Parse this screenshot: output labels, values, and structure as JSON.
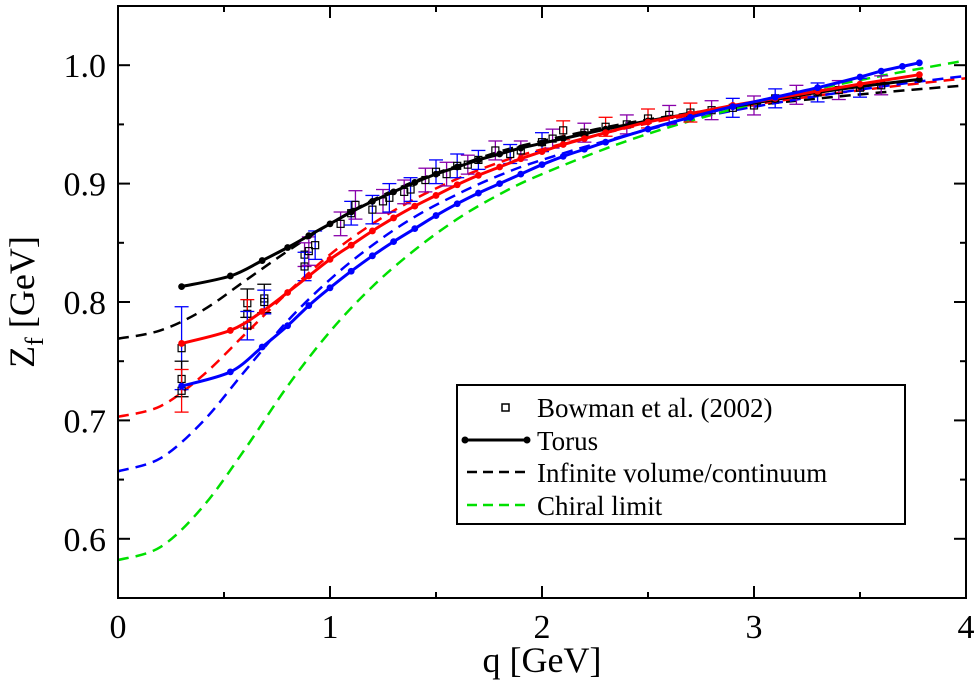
{
  "chart_data": {
    "type": "line",
    "xlabel": "q [GeV]",
    "ylabel_main": "Z",
    "ylabel_sub": "f",
    "ylabel_unit": "[GeV]",
    "xlim": [
      0,
      4
    ],
    "ylim": [
      0.55,
      1.05
    ],
    "xticks": [
      0,
      1,
      2,
      3,
      4
    ],
    "xtick_labels": [
      "0",
      "1",
      "2",
      "3",
      "4"
    ],
    "yticks": [
      0.6,
      0.7,
      0.8,
      0.9,
      1.0
    ],
    "ytick_labels": [
      "0.6",
      "0.7",
      "0.8",
      "0.9",
      "1.0"
    ],
    "grid": false,
    "legend_position": "bottom-right",
    "legend": [
      {
        "label": "Bowman et al. (2002)",
        "style": "square-marker",
        "color": "#000000"
      },
      {
        "label": "Torus",
        "style": "line-with-dots",
        "color": "#000000"
      },
      {
        "label": "Infinite volume/continuum",
        "style": "dashed",
        "color": "#000000"
      },
      {
        "label": "Chiral limit",
        "style": "dashed",
        "color": "#00e000"
      }
    ],
    "colors": {
      "black": "#000000",
      "red": "#ff0000",
      "blue": "#0000ff",
      "green": "#00e000",
      "purple": "#8800aa"
    },
    "torus_series": [
      {
        "color": "#000000",
        "x": [
          0.3,
          0.53,
          0.68,
          0.8,
          0.9,
          1.0,
          1.1,
          1.2,
          1.3,
          1.4,
          1.5,
          1.6,
          1.7,
          1.8,
          1.9,
          2.0,
          2.1,
          2.2,
          2.3,
          2.5,
          2.7,
          2.9,
          3.1,
          3.3,
          3.5,
          3.78
        ],
        "y": [
          0.813,
          0.822,
          0.835,
          0.846,
          0.856,
          0.866,
          0.876,
          0.885,
          0.893,
          0.901,
          0.908,
          0.914,
          0.92,
          0.925,
          0.93,
          0.934,
          0.938,
          0.942,
          0.946,
          0.953,
          0.959,
          0.965,
          0.971,
          0.977,
          0.982,
          0.988
        ]
      },
      {
        "color": "#ff0000",
        "x": [
          0.3,
          0.53,
          0.68,
          0.8,
          0.9,
          1.0,
          1.1,
          1.2,
          1.3,
          1.4,
          1.5,
          1.6,
          1.7,
          1.8,
          1.9,
          2.0,
          2.1,
          2.2,
          2.3,
          2.5,
          2.7,
          2.9,
          3.1,
          3.3,
          3.5,
          3.78
        ],
        "y": [
          0.765,
          0.776,
          0.792,
          0.808,
          0.822,
          0.836,
          0.848,
          0.86,
          0.871,
          0.881,
          0.89,
          0.899,
          0.907,
          0.914,
          0.921,
          0.927,
          0.933,
          0.938,
          0.943,
          0.952,
          0.959,
          0.966,
          0.972,
          0.978,
          0.984,
          0.992
        ]
      },
      {
        "color": "#0000ff",
        "x": [
          0.3,
          0.53,
          0.68,
          0.8,
          0.9,
          1.0,
          1.1,
          1.2,
          1.3,
          1.4,
          1.5,
          1.6,
          1.7,
          1.8,
          1.9,
          2.0,
          2.1,
          2.2,
          2.3,
          2.5,
          2.7,
          2.9,
          3.1,
          3.3,
          3.5,
          3.6,
          3.7,
          3.78
        ],
        "y": [
          0.729,
          0.741,
          0.762,
          0.78,
          0.797,
          0.812,
          0.826,
          0.839,
          0.851,
          0.862,
          0.873,
          0.883,
          0.892,
          0.9,
          0.908,
          0.916,
          0.923,
          0.929,
          0.935,
          0.946,
          0.956,
          0.965,
          0.973,
          0.981,
          0.99,
          0.995,
          0.999,
          1.002
        ]
      }
    ],
    "continuum_series": [
      {
        "color": "#000000",
        "x": [
          0.0,
          0.2,
          0.4,
          0.6,
          0.8,
          1.0,
          1.2,
          1.4,
          1.6,
          1.8,
          2.0,
          2.4,
          2.8,
          3.2,
          3.6,
          4.0
        ],
        "y": [
          0.769,
          0.776,
          0.793,
          0.818,
          0.843,
          0.866,
          0.886,
          0.902,
          0.915,
          0.927,
          0.936,
          0.951,
          0.962,
          0.97,
          0.977,
          0.983
        ]
      },
      {
        "color": "#ff0000",
        "x": [
          0.0,
          0.2,
          0.4,
          0.6,
          0.8,
          1.0,
          1.2,
          1.4,
          1.6,
          1.8,
          2.0,
          2.4,
          2.8,
          3.2,
          3.6,
          4.0
        ],
        "y": [
          0.703,
          0.712,
          0.738,
          0.773,
          0.808,
          0.84,
          0.866,
          0.887,
          0.904,
          0.918,
          0.929,
          0.947,
          0.961,
          0.972,
          0.981,
          0.989
        ]
      },
      {
        "color": "#0000ff",
        "x": [
          0.0,
          0.2,
          0.4,
          0.6,
          0.8,
          1.0,
          1.2,
          1.4,
          1.6,
          1.8,
          2.0,
          2.4,
          2.8,
          3.2,
          3.6,
          4.0
        ],
        "y": [
          0.657,
          0.668,
          0.699,
          0.742,
          0.784,
          0.819,
          0.848,
          0.872,
          0.891,
          0.907,
          0.92,
          0.941,
          0.958,
          0.971,
          0.982,
          0.991
        ]
      },
      {
        "color": "#00e000",
        "x": [
          0.0,
          0.2,
          0.4,
          0.6,
          0.8,
          1.0,
          1.2,
          1.4,
          1.6,
          1.8,
          2.0,
          2.4,
          2.8,
          3.2,
          3.6,
          4.0
        ],
        "y": [
          0.582,
          0.593,
          0.627,
          0.676,
          0.729,
          0.775,
          0.813,
          0.844,
          0.87,
          0.891,
          0.908,
          0.936,
          0.958,
          0.976,
          0.991,
          1.004
        ]
      }
    ],
    "bowman_data": {
      "marker": "open-square",
      "x": [
        0.3,
        0.3,
        0.3,
        0.61,
        0.61,
        0.61,
        0.69,
        0.69,
        0.88,
        0.88,
        0.9,
        0.93,
        1.05,
        1.1,
        1.12,
        1.2,
        1.25,
        1.28,
        1.35,
        1.38,
        1.45,
        1.5,
        1.55,
        1.6,
        1.65,
        1.7,
        1.78,
        1.85,
        1.9,
        2.0,
        2.05,
        2.1,
        2.2,
        2.3,
        2.4,
        2.5,
        2.6,
        2.7,
        2.8,
        2.9,
        3.0,
        3.1,
        3.2,
        3.3,
        3.4,
        3.5,
        3.6
      ],
      "y": [
        0.761,
        0.735,
        0.725,
        0.799,
        0.79,
        0.78,
        0.803,
        0.8,
        0.84,
        0.83,
        0.843,
        0.848,
        0.866,
        0.875,
        0.882,
        0.878,
        0.885,
        0.888,
        0.893,
        0.895,
        0.903,
        0.91,
        0.908,
        0.915,
        0.916,
        0.92,
        0.928,
        0.925,
        0.928,
        0.935,
        0.938,
        0.945,
        0.943,
        0.948,
        0.95,
        0.955,
        0.958,
        0.96,
        0.962,
        0.964,
        0.966,
        0.972,
        0.975,
        0.977,
        0.979,
        0.981,
        0.983
      ],
      "err": [
        0.035,
        0.015,
        0.018,
        0.012,
        0.012,
        0.012,
        0.012,
        0.01,
        0.01,
        0.012,
        0.012,
        0.012,
        0.01,
        0.01,
        0.012,
        0.012,
        0.01,
        0.012,
        0.01,
        0.01,
        0.01,
        0.01,
        0.01,
        0.01,
        0.008,
        0.008,
        0.008,
        0.008,
        0.008,
        0.008,
        0.008,
        0.008,
        0.008,
        0.008,
        0.008,
        0.008,
        0.008,
        0.008,
        0.008,
        0.008,
        0.008,
        0.008,
        0.008,
        0.008,
        0.008,
        0.008,
        0.008
      ],
      "errbar_color": [
        "#0000ff",
        "#000000",
        "#ff0000",
        "#000000",
        "#ff0000",
        "#0000ff",
        "#000000",
        "#0000ff",
        "#8800aa",
        "#0000ff",
        "#8800aa",
        "#0000ff",
        "#8800aa",
        "#0000ff",
        "#8800aa",
        "#0000ff",
        "#8800aa",
        "#0000ff",
        "#8800aa",
        "#0000ff",
        "#8800aa",
        "#0000ff",
        "#8800aa",
        "#0000ff",
        "#8800aa",
        "#0000ff",
        "#8800aa",
        "#0000ff",
        "#8800aa",
        "#0000ff",
        "#8800aa",
        "#ff0000",
        "#8800aa",
        "#ff0000",
        "#8800aa",
        "#ff0000",
        "#8800aa",
        "#ff0000",
        "#8800aa",
        "#0000ff",
        "#8800aa",
        "#0000ff",
        "#8800aa",
        "#0000ff",
        "#8800aa",
        "#0000ff",
        "#8800aa"
      ]
    }
  }
}
